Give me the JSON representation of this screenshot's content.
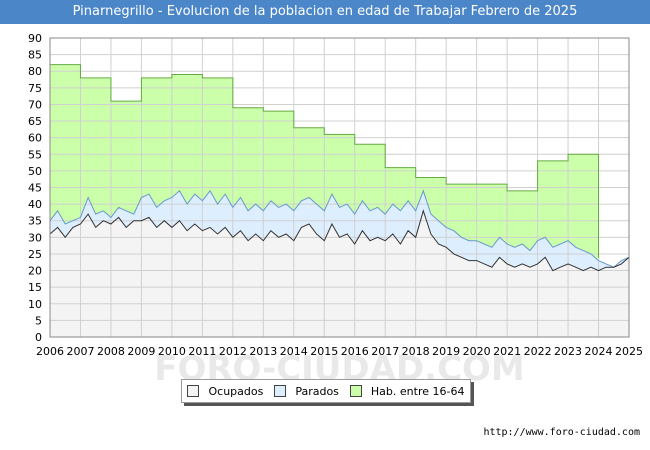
{
  "chart_data": {
    "type": "area",
    "title": "Pinarnegrillo - Evolucion de la poblacion en edad de Trabajar Febrero de 2025",
    "xlabel": "",
    "ylabel": "",
    "ylim": [
      0,
      90
    ],
    "xlim": [
      2006,
      2025
    ],
    "yticks": [
      "0",
      "5",
      "10",
      "15",
      "20",
      "25",
      "30",
      "35",
      "40",
      "45",
      "50",
      "55",
      "60",
      "65",
      "70",
      "75",
      "80",
      "85",
      "90"
    ],
    "xticks": [
      "2006",
      "2007",
      "2008",
      "2009",
      "2010",
      "2011",
      "2012",
      "2013",
      "2014",
      "2015",
      "2016",
      "2017",
      "2018",
      "2019",
      "2020",
      "2021",
      "2022",
      "2023",
      "2024",
      "2025"
    ],
    "grid": true,
    "legend_position": "bottom-center",
    "series": [
      {
        "name": "Hab. entre 16-64",
        "color": "#ccffaa",
        "line_color": "#66aa44",
        "step": true,
        "x": [
          2006,
          2007,
          2008,
          2009,
          2010,
          2011,
          2012,
          2013,
          2014,
          2015,
          2016,
          2017,
          2018,
          2019,
          2020,
          2021,
          2022,
          2023,
          2024
        ],
        "values": [
          82,
          78,
          71,
          78,
          79,
          78,
          69,
          68,
          63,
          61,
          58,
          51,
          48,
          46,
          46,
          44,
          53,
          55,
          24
        ]
      },
      {
        "name": "Parados",
        "color": "#ddeeff",
        "line_color": "#6699cc",
        "x": [
          2006,
          2006.25,
          2006.5,
          2006.75,
          2007,
          2007.25,
          2007.5,
          2007.75,
          2008,
          2008.25,
          2008.5,
          2008.75,
          2009,
          2009.25,
          2009.5,
          2009.75,
          2010,
          2010.25,
          2010.5,
          2010.75,
          2011,
          2011.25,
          2011.5,
          2011.75,
          2012,
          2012.25,
          2012.5,
          2012.75,
          2013,
          2013.25,
          2013.5,
          2013.75,
          2014,
          2014.25,
          2014.5,
          2014.75,
          2015,
          2015.25,
          2015.5,
          2015.75,
          2016,
          2016.25,
          2016.5,
          2016.75,
          2017,
          2017.25,
          2017.5,
          2017.75,
          2018,
          2018.25,
          2018.5,
          2018.75,
          2019,
          2019.25,
          2019.5,
          2019.75,
          2020,
          2020.25,
          2020.5,
          2020.75,
          2021,
          2021.25,
          2021.5,
          2021.75,
          2022,
          2022.25,
          2022.5,
          2022.75,
          2023,
          2023.25,
          2023.5,
          2023.75,
          2024,
          2024.25,
          2024.5,
          2024.75,
          2025
        ],
        "values": [
          35,
          38,
          34,
          35,
          36,
          42,
          37,
          38,
          36,
          39,
          38,
          37,
          42,
          43,
          39,
          41,
          42,
          44,
          40,
          43,
          41,
          44,
          40,
          43,
          39,
          42,
          38,
          40,
          38,
          41,
          39,
          40,
          38,
          41,
          42,
          40,
          38,
          43,
          39,
          40,
          37,
          41,
          38,
          39,
          37,
          40,
          38,
          41,
          38,
          44,
          37,
          35,
          33,
          32,
          30,
          29,
          29,
          28,
          27,
          30,
          28,
          27,
          28,
          26,
          29,
          30,
          27,
          28,
          29,
          27,
          26,
          25,
          23,
          22,
          21,
          23,
          24
        ]
      },
      {
        "name": "Ocupados",
        "color": "#f4f4f4",
        "line_color": "#333333",
        "x": [
          2006,
          2006.25,
          2006.5,
          2006.75,
          2007,
          2007.25,
          2007.5,
          2007.75,
          2008,
          2008.25,
          2008.5,
          2008.75,
          2009,
          2009.25,
          2009.5,
          2009.75,
          2010,
          2010.25,
          2010.5,
          2010.75,
          2011,
          2011.25,
          2011.5,
          2011.75,
          2012,
          2012.25,
          2012.5,
          2012.75,
          2013,
          2013.25,
          2013.5,
          2013.75,
          2014,
          2014.25,
          2014.5,
          2014.75,
          2015,
          2015.25,
          2015.5,
          2015.75,
          2016,
          2016.25,
          2016.5,
          2016.75,
          2017,
          2017.25,
          2017.5,
          2017.75,
          2018,
          2018.25,
          2018.5,
          2018.75,
          2019,
          2019.25,
          2019.5,
          2019.75,
          2020,
          2020.25,
          2020.5,
          2020.75,
          2021,
          2021.25,
          2021.5,
          2021.75,
          2022,
          2022.25,
          2022.5,
          2022.75,
          2023,
          2023.25,
          2023.5,
          2023.75,
          2024,
          2024.25,
          2024.5,
          2024.75,
          2025
        ],
        "values": [
          31,
          33,
          30,
          33,
          34,
          37,
          33,
          35,
          34,
          36,
          33,
          35,
          35,
          36,
          33,
          35,
          33,
          35,
          32,
          34,
          32,
          33,
          31,
          33,
          30,
          32,
          29,
          31,
          29,
          32,
          30,
          31,
          29,
          33,
          34,
          31,
          29,
          34,
          30,
          31,
          28,
          32,
          29,
          30,
          29,
          31,
          28,
          32,
          30,
          38,
          31,
          28,
          27,
          25,
          24,
          23,
          23,
          22,
          21,
          24,
          22,
          21,
          22,
          21,
          22,
          24,
          20,
          21,
          22,
          21,
          20,
          21,
          20,
          21,
          21,
          22,
          24
        ]
      }
    ]
  },
  "legend": {
    "items": [
      {
        "label": "Ocupados",
        "color": "#f4f4f4"
      },
      {
        "label": "Parados",
        "color": "#ddeeff"
      },
      {
        "label": "Hab. entre 16-64",
        "color": "#ccffaa"
      }
    ]
  },
  "watermark": "FORO-CIUDAD.COM",
  "source": "http://www.foro-ciudad.com"
}
